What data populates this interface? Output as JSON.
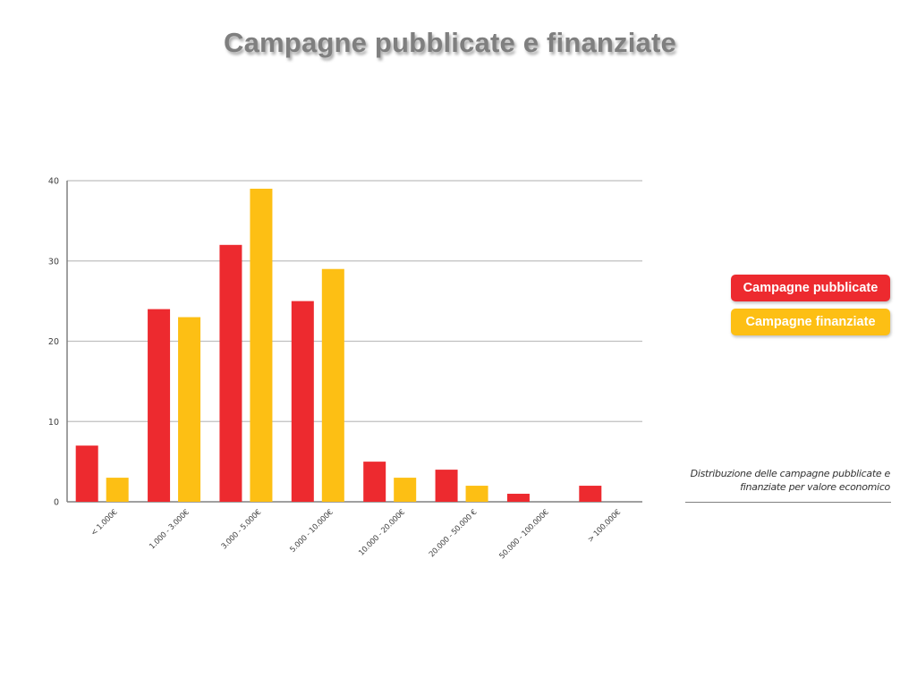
{
  "title": "Campagne pubblicate e finanziate",
  "caption": "Distribuzione delle campagne pubblicate e finanziate per valore economico",
  "colors": {
    "pubblicate": "#ed2a2f",
    "finanziate": "#fdbf14",
    "grid": "#bfbfbf",
    "axis": "#808080"
  },
  "chart_data": {
    "type": "bar",
    "categories": [
      "< 1.000€",
      "1.000 - 3.000€",
      "3.000 - 5.000€",
      "5.000 - 10.000€",
      "10.000 - 20.000€",
      "20.000 - 50.000 €",
      "50.000 - 100.000€",
      "> 100.000€"
    ],
    "series": [
      {
        "name": "Campagne pubblicate",
        "values": [
          7,
          24,
          32,
          25,
          5,
          4,
          1,
          2
        ]
      },
      {
        "name": "Campagne finanziate",
        "values": [
          3,
          23,
          39,
          29,
          3,
          2,
          0,
          0
        ]
      }
    ],
    "yticks": [
      "0",
      "10",
      "20",
      "30",
      "40"
    ],
    "ylim": [
      0,
      40
    ],
    "grid": true,
    "legend": "right"
  }
}
